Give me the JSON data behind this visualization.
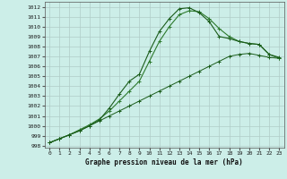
{
  "title": "Graphe pression niveau de la mer (hPa)",
  "bg_color": "#cceee8",
  "grid_color": "#b0ccc8",
  "line_color1": "#1a5c1a",
  "line_color2": "#2d7a2d",
  "xlim": [
    -0.5,
    23.5
  ],
  "ylim": [
    997.8,
    1012.5
  ],
  "xticks": [
    0,
    1,
    2,
    3,
    4,
    5,
    6,
    7,
    8,
    9,
    10,
    11,
    12,
    13,
    14,
    15,
    16,
    17,
    18,
    19,
    20,
    21,
    22,
    23
  ],
  "yticks": [
    998,
    999,
    1000,
    1001,
    1002,
    1003,
    1004,
    1005,
    1006,
    1007,
    1008,
    1009,
    1010,
    1011,
    1012
  ],
  "curve1_x": [
    0,
    1,
    2,
    3,
    4,
    5,
    6,
    7,
    8,
    9,
    10,
    11,
    12,
    13,
    14,
    15,
    16,
    17,
    18,
    19,
    20,
    21,
    22,
    23
  ],
  "curve1_y": [
    998.3,
    998.7,
    999.1,
    999.5,
    1000.0,
    1000.5,
    1001.0,
    1001.5,
    1002.0,
    1002.5,
    1003.0,
    1003.5,
    1004.0,
    1004.5,
    1005.0,
    1005.5,
    1006.0,
    1006.5,
    1007.0,
    1007.2,
    1007.3,
    1007.1,
    1006.9,
    1006.8
  ],
  "curve2_x": [
    0,
    1,
    2,
    3,
    4,
    5,
    6,
    7,
    8,
    9,
    10,
    11,
    12,
    13,
    14,
    15,
    16,
    17,
    18,
    19,
    20,
    21,
    22,
    23
  ],
  "curve2_y": [
    998.3,
    998.7,
    999.1,
    999.6,
    1000.1,
    1000.7,
    1001.5,
    1002.5,
    1003.5,
    1004.5,
    1006.5,
    1008.5,
    1010.0,
    1011.2,
    1011.6,
    1011.5,
    1010.8,
    1009.8,
    1009.0,
    1008.5,
    1008.3,
    1008.2,
    1007.2,
    1006.8
  ],
  "curve3_x": [
    0,
    1,
    2,
    3,
    4,
    5,
    6,
    7,
    8,
    9,
    10,
    11,
    12,
    13,
    14,
    15,
    16,
    17,
    18,
    19,
    20,
    21,
    22,
    23
  ],
  "curve3_y": [
    998.3,
    998.7,
    999.1,
    999.5,
    1000.0,
    1000.6,
    1001.8,
    1003.2,
    1004.5,
    1005.2,
    1007.5,
    1009.5,
    1010.8,
    1011.8,
    1011.9,
    1011.4,
    1010.5,
    1009.0,
    1008.8,
    1008.5,
    1008.3,
    1008.2,
    1007.2,
    1006.9
  ]
}
